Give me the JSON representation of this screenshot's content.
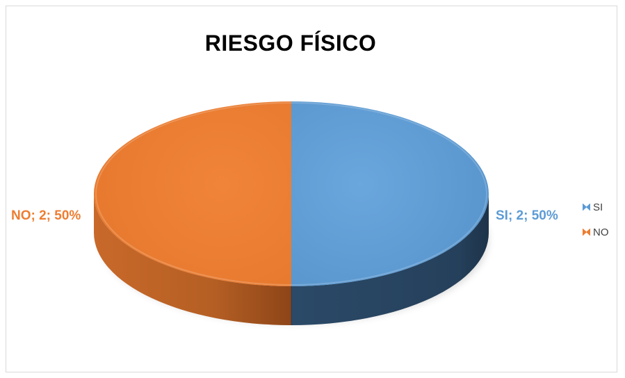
{
  "chart_data": {
    "type": "pie",
    "title": "RIESGO FÍSICO",
    "categories": [
      "SI",
      "NO"
    ],
    "values": [
      2,
      2
    ],
    "percentages": [
      "50%",
      "50%"
    ],
    "data_labels": [
      "SI; 2; 50%",
      "NO; 2; 50%"
    ],
    "colors": [
      "#5b9bd5",
      "#ed7d31"
    ],
    "side_colors": [
      "#2e4d6b",
      "#a5561e"
    ],
    "legend_position": "right",
    "three_d": true
  },
  "legend": {
    "items": [
      {
        "label": "SI",
        "color": "#5b9bd5"
      },
      {
        "label": "NO",
        "color": "#ed7d31"
      }
    ]
  }
}
